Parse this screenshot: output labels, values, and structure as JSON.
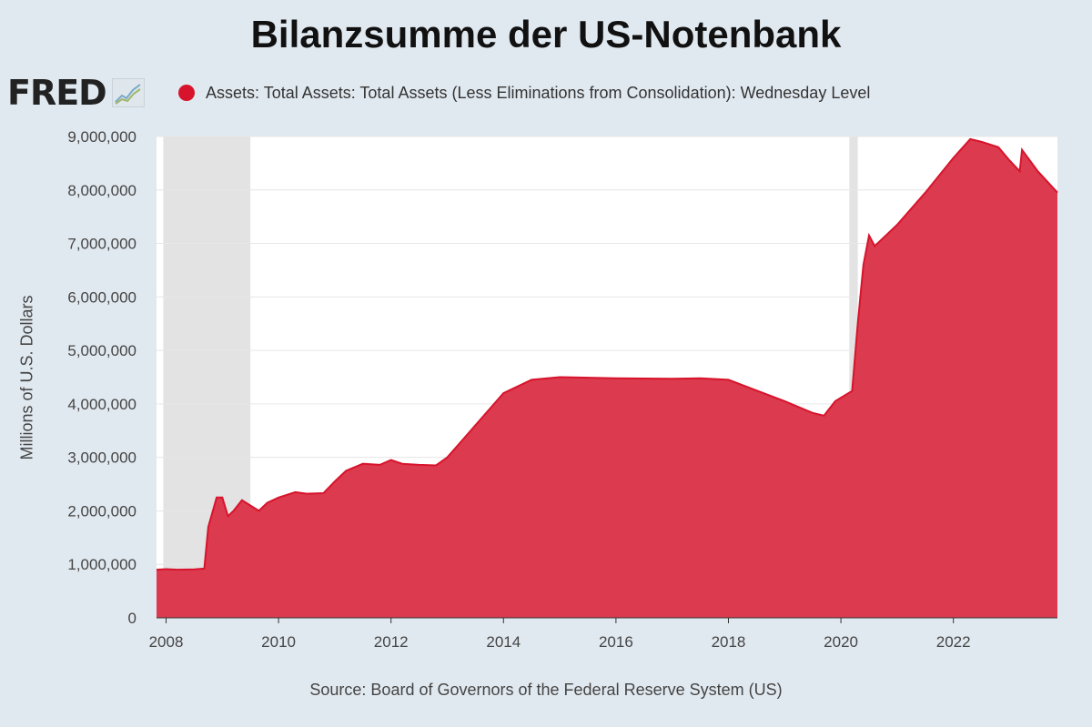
{
  "title": "Bilanzsumme der US-Notenbank",
  "logo": {
    "text": "FRED",
    "icon": "chart-icon"
  },
  "source": "Source: Board of Governors of the Federal Reserve System (US)",
  "colors": {
    "series": "#d7142c",
    "fill": "#dc3a4e",
    "recession": "#e3e3e3",
    "background": "#e1e9f0",
    "plot": "#ffffff",
    "grid": "#e6e6e6"
  },
  "chart_data": {
    "type": "area",
    "xlabel": "",
    "ylabel": "Millions of U.S. Dollars",
    "xlim": [
      2007.83,
      2023.85
    ],
    "ylim": [
      0,
      9000000
    ],
    "x_ticks": [
      "2008",
      "2010",
      "2012",
      "2014",
      "2016",
      "2018",
      "2020",
      "2022"
    ],
    "y_ticks": [
      "0",
      "1,000,000",
      "2,000,000",
      "3,000,000",
      "4,000,000",
      "5,000,000",
      "6,000,000",
      "7,000,000",
      "8,000,000",
      "9,000,000"
    ],
    "grid": true,
    "legend_position": "top",
    "recessions": [
      {
        "start": 2007.95,
        "end": 2009.5
      },
      {
        "start": 2020.15,
        "end": 2020.3
      }
    ],
    "series": [
      {
        "name": "Assets: Total Assets: Total Assets (Less Eliminations from Consolidation): Wednesday Level",
        "x": [
          2007.83,
          2008.0,
          2008.2,
          2008.5,
          2008.68,
          2008.75,
          2008.9,
          2009.0,
          2009.1,
          2009.2,
          2009.35,
          2009.5,
          2009.65,
          2009.8,
          2010.0,
          2010.3,
          2010.5,
          2010.8,
          2011.0,
          2011.2,
          2011.5,
          2011.8,
          2012.0,
          2012.2,
          2012.5,
          2012.8,
          2013.0,
          2013.5,
          2014.0,
          2014.5,
          2015.0,
          2016.0,
          2017.0,
          2017.5,
          2018.0,
          2018.5,
          2019.0,
          2019.5,
          2019.7,
          2019.9,
          2020.1,
          2020.2,
          2020.3,
          2020.4,
          2020.5,
          2020.6,
          2021.0,
          2021.5,
          2022.0,
          2022.3,
          2022.5,
          2022.8,
          2023.0,
          2023.18,
          2023.22,
          2023.5,
          2023.85
        ],
        "values": [
          900000,
          910000,
          900000,
          905000,
          920000,
          1700000,
          2250000,
          2250000,
          1900000,
          2000000,
          2200000,
          2100000,
          2000000,
          2150000,
          2250000,
          2350000,
          2320000,
          2330000,
          2550000,
          2750000,
          2880000,
          2860000,
          2950000,
          2880000,
          2860000,
          2850000,
          3000000,
          3600000,
          4200000,
          4450000,
          4500000,
          4480000,
          4470000,
          4480000,
          4450000,
          4250000,
          4050000,
          3830000,
          3780000,
          4050000,
          4180000,
          4240000,
          5500000,
          6600000,
          7150000,
          6950000,
          7350000,
          7950000,
          8600000,
          8950000,
          8900000,
          8800000,
          8550000,
          8350000,
          8750000,
          8350000,
          7950000
        ]
      }
    ]
  }
}
